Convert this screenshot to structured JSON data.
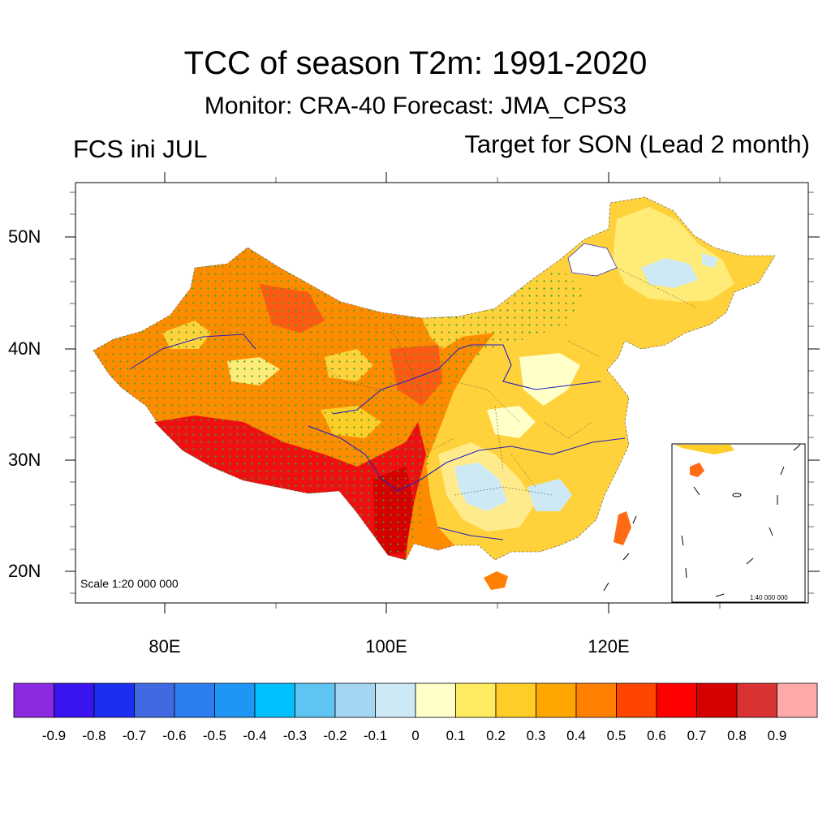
{
  "title": "TCC of season T2m: 1991-2020",
  "subtitle": "Monitor: CRA-40   Forecast: JMA_CPS3",
  "left_label": "FCS ini JUL",
  "right_label": "Target for SON (Lead 2 month)",
  "scale_text": "Scale 1:20 000 000",
  "inset_scale_text": "1:40 000 000",
  "lat_labels": [
    "50N",
    "40N",
    "30N",
    "20N"
  ],
  "lon_labels": [
    "80E",
    "100E",
    "120E"
  ],
  "colorbar": {
    "labels": [
      "-0.9",
      "-0.8",
      "-0.7",
      "-0.6",
      "-0.5",
      "-0.4",
      "-0.3",
      "-0.2",
      "-0.1",
      "0",
      "0.1",
      "0.2",
      "0.3",
      "0.4",
      "0.5",
      "0.6",
      "0.7",
      "0.8",
      "0.9"
    ],
    "colors": [
      "#8a2be2",
      "#3a14f0",
      "#1c2ef0",
      "#4169e1",
      "#2c7ef0",
      "#1e96f5",
      "#00bfff",
      "#5ec5f2",
      "#a2d6f2",
      "#cde9f5",
      "#ffffc8",
      "#ffeb60",
      "#ffcd28",
      "#ffa500",
      "#ff7f00",
      "#ff4500",
      "#ff0000",
      "#d70000",
      "#d83232",
      "#ffaaaa"
    ]
  }
}
